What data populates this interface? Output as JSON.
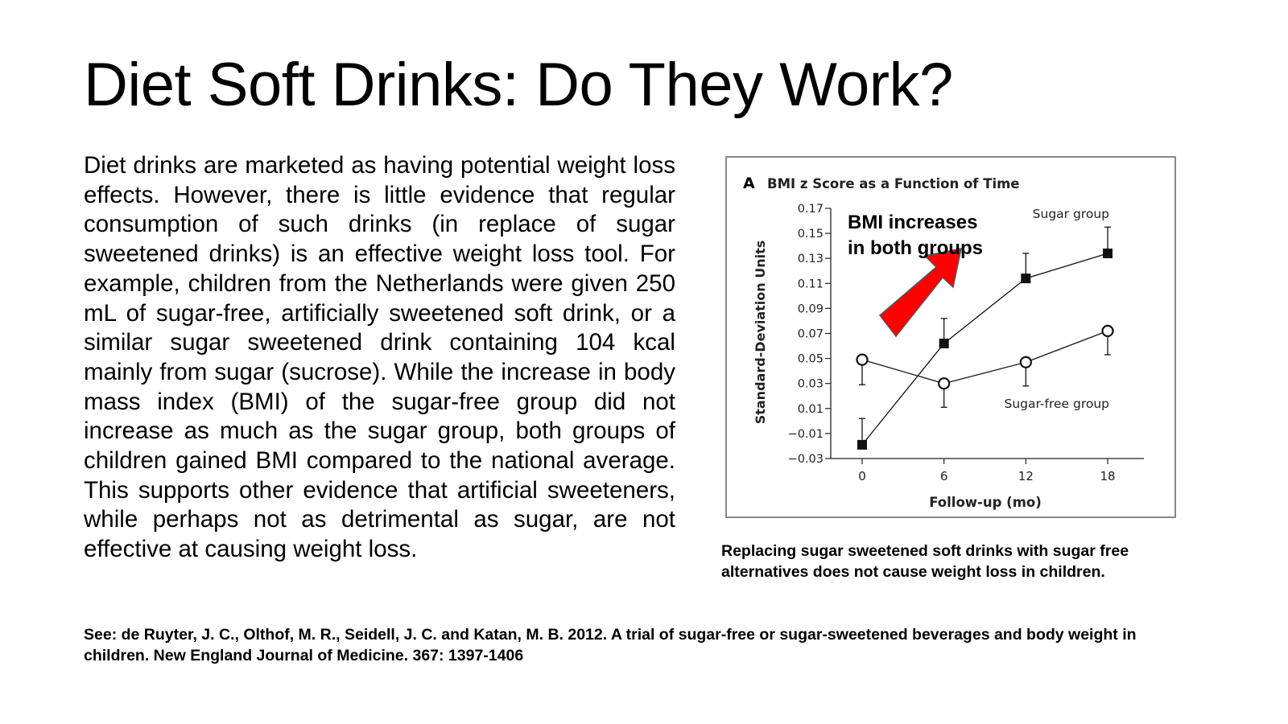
{
  "slide": {
    "title": "Diet Soft Drinks: Do They Work?",
    "body": "Diet drinks are marketed as having potential weight loss effects. However, there is little evidence that regular consumption of such drinks (in replace of sugar sweetened drinks) is an effective weight loss tool. For example, children from the Netherlands were given 250 mL of sugar-free, artificially sweetened soft drink, or a similar sugar sweetened drink containing 104 kcal mainly from sugar (sucrose). While the increase in body mass index (BMI) of the sugar-free group did not increase as much as the sugar group, both groups of children gained BMI compared to the national average. This supports other evidence that artificial sweeteners, while perhaps not as detrimental as sugar, are not effective at causing weight loss.",
    "caption": "Replacing sugar sweetened soft drinks with sugar free alternatives does not cause weight loss in children.",
    "reference": "See: de Ruyter, J. C., Olthof, M. R., Seidell, J. C. and Katan, M. B. 2012. A trial of sugar-free or sugar-sweetened beverages and body weight in children. New England Journal of Medicine. 367: 1397-1406"
  },
  "chart_data": {
    "type": "line",
    "panel_label": "A",
    "title": "BMI z Score as a Function of Time",
    "xlabel": "Follow-up (mo)",
    "ylabel": "Standard-Deviation Units",
    "x": [
      0,
      6,
      12,
      18
    ],
    "x_ticks": [
      "0",
      "6",
      "12",
      "18"
    ],
    "y_ticks": [
      "0.17",
      "0.15",
      "0.13",
      "0.11",
      "0.09",
      "0.07",
      "0.05",
      "0.03",
      "0.01",
      "−0.01",
      "−0.03"
    ],
    "ylim": [
      -0.03,
      0.17
    ],
    "xlim": [
      -2.3,
      20.7
    ],
    "grid": false,
    "annotation": {
      "text_line1": "BMI increases",
      "text_line2": "in both groups",
      "arrow_color": "#ff0000"
    },
    "series": [
      {
        "name": "Sugar group",
        "marker": "filled-square",
        "values": [
          -0.019,
          0.062,
          0.114,
          0.134
        ],
        "error_upper": [
          0.002,
          0.082,
          0.134,
          0.155
        ]
      },
      {
        "name": "Sugar-free group",
        "marker": "open-circle",
        "values": [
          0.049,
          0.03,
          0.047,
          0.072
        ],
        "error_lower": [
          0.029,
          0.011,
          0.028,
          0.053
        ]
      }
    ]
  }
}
